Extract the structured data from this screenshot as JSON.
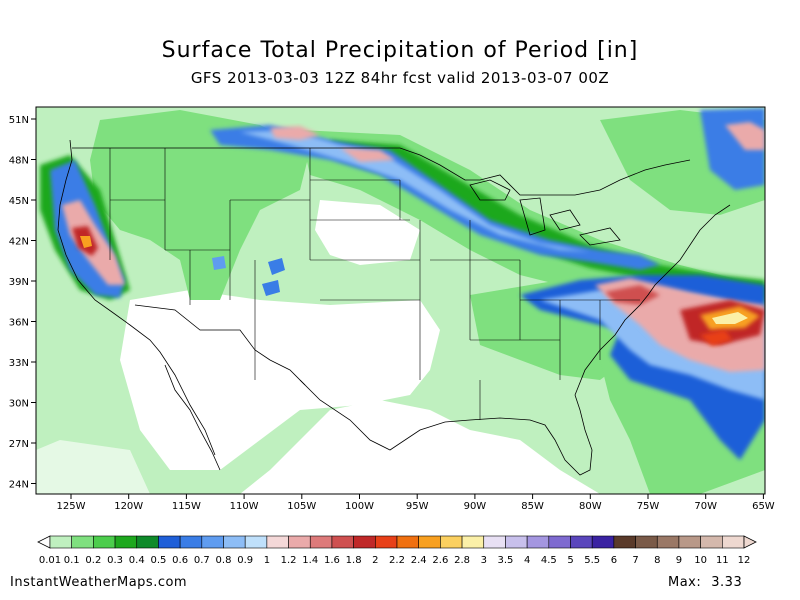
{
  "title": "Surface Total Precipitation of Period [in]",
  "subtitle": "GFS 2013-03-03 12Z 84hr fcst valid 2013-03-07 00Z",
  "map": {
    "lat_labels": [
      "51N",
      "48N",
      "45N",
      "42N",
      "39N",
      "36N",
      "33N",
      "30N",
      "27N",
      "24N"
    ],
    "lon_labels": [
      "125W",
      "120W",
      "115W",
      "110W",
      "105W",
      "100W",
      "95W",
      "90W",
      "85W",
      "80W",
      "75W",
      "70W",
      "65W"
    ],
    "extent": {
      "lon": [
        -128,
        -65
      ],
      "lat": [
        23,
        52
      ]
    }
  },
  "colorbar": {
    "labels": [
      "0.01",
      "0.1",
      "0.2",
      "0.3",
      "0.4",
      "0.5",
      "0.6",
      "0.7",
      "0.8",
      "0.9",
      "1",
      "1.2",
      "1.4",
      "1.6",
      "1.8",
      "2",
      "2.2",
      "2.4",
      "2.6",
      "2.8",
      "3",
      "3.5",
      "4",
      "4.5",
      "5",
      "5.5",
      "6",
      "7",
      "8",
      "9",
      "10",
      "11",
      "12"
    ],
    "colors": [
      "#bff0bf",
      "#7fe07f",
      "#4ccd4c",
      "#1ea81e",
      "#0f8a2a",
      "#1f5fd8",
      "#3a7de6",
      "#5f9cf0",
      "#8dbdf6",
      "#bfe0fb",
      "#f4d8d8",
      "#eaaaaa",
      "#dd7a7a",
      "#cf5050",
      "#c02828",
      "#e84018",
      "#f07010",
      "#f8a020",
      "#fbd060",
      "#fbf0a8",
      "#e8e0f4",
      "#c8c0ec",
      "#a496e0",
      "#7e6ad0",
      "#5a46bc",
      "#3a22a2",
      "#5a3a2a",
      "#7a5a48",
      "#9a7866",
      "#b89888",
      "#d4b8ac",
      "#eed8d0"
    ]
  },
  "footer": {
    "source": "InstantWeatherMaps.com",
    "max_label": "Max:",
    "max_value": "3.33"
  }
}
